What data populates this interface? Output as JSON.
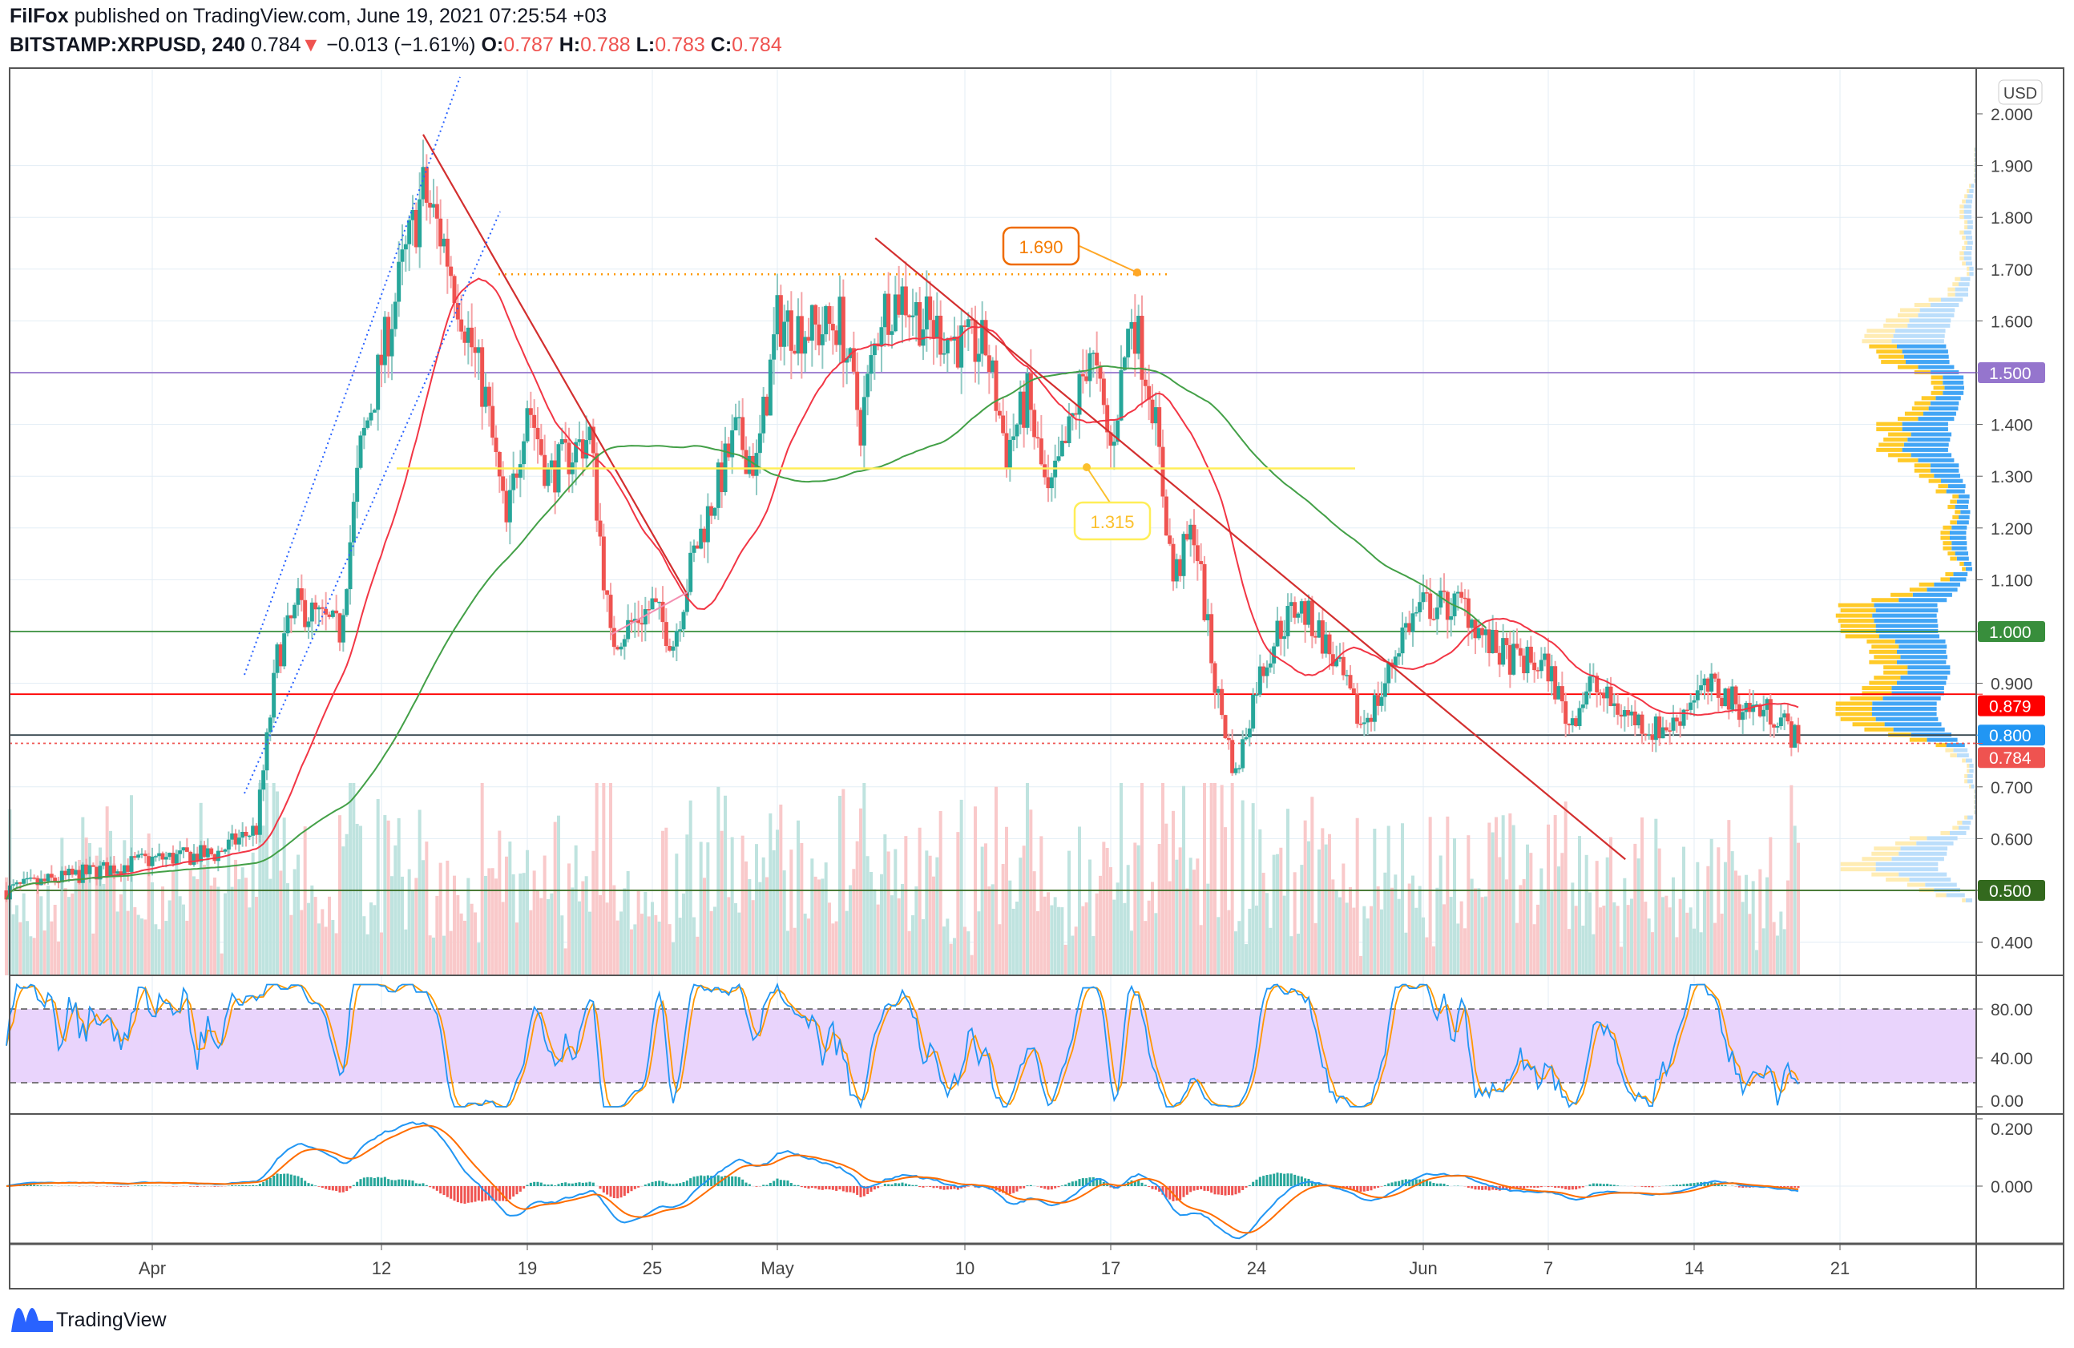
{
  "header": {
    "author": "FilFox",
    "published": "published on TradingView.com, June 19, 2021 07:25:54 +03",
    "symbol": "BITSTAMP:XRPUSD, 240",
    "last": "0.784",
    "arrow": "▼",
    "change": "−0.013 (−1.61%)",
    "o_label": "O:",
    "o": "0.787",
    "h_label": "H:",
    "h": "0.788",
    "l_label": "L:",
    "l": "0.783",
    "c_label": "C:",
    "c": "0.784"
  },
  "footer": {
    "brand": "TradingView"
  },
  "colors": {
    "up": "#26a69a",
    "down": "#ef5350",
    "ma_fast": "#f23645",
    "ma_slow": "#43a047",
    "stoch_k": "#2196f3",
    "stoch_d": "#ff9800"
  },
  "chart_data": {
    "type": "candlestick",
    "symbol": "BITSTAMP:XRPUSD",
    "interval": "240",
    "currency": "USD",
    "price_axis": {
      "ticks": [
        "2.000",
        "1.900",
        "1.800",
        "1.700",
        "1.600",
        "1.400",
        "1.300",
        "1.200",
        "1.100",
        "0.900",
        "0.700",
        "0.600",
        "0.400"
      ],
      "ylim": [
        0.33,
        2.05
      ]
    },
    "time_axis": {
      "labels": [
        "Apr",
        "12",
        "19",
        "25",
        "May",
        "10",
        "17",
        "24",
        "Jun",
        "7",
        "14",
        "21"
      ],
      "days_from_apr1": [
        0,
        11,
        18,
        24,
        30,
        39,
        46,
        53,
        61,
        67,
        74,
        81
      ]
    },
    "price_path_anchors": [
      [
        -7,
        0.5
      ],
      [
        0,
        0.56
      ],
      [
        3,
        0.57
      ],
      [
        5,
        0.62
      ],
      [
        6,
        0.95
      ],
      [
        7,
        1.05
      ],
      [
        9,
        1.0
      ],
      [
        10,
        1.35
      ],
      [
        12,
        1.7
      ],
      [
        13,
        1.85
      ],
      [
        14,
        1.75
      ],
      [
        15,
        1.6
      ],
      [
        16,
        1.45
      ],
      [
        17,
        1.2
      ],
      [
        18,
        1.45
      ],
      [
        19,
        1.3
      ],
      [
        21,
        1.38
      ],
      [
        22,
        0.98
      ],
      [
        24,
        1.05
      ],
      [
        25,
        0.98
      ],
      [
        26,
        1.15
      ],
      [
        28,
        1.38
      ],
      [
        29,
        1.32
      ],
      [
        30,
        1.6
      ],
      [
        32,
        1.58
      ],
      [
        33,
        1.6
      ],
      [
        34,
        1.4
      ],
      [
        35,
        1.62
      ],
      [
        36,
        1.65
      ],
      [
        37,
        1.6
      ],
      [
        39,
        1.55
      ],
      [
        40,
        1.55
      ],
      [
        41,
        1.35
      ],
      [
        42,
        1.45
      ],
      [
        43,
        1.25
      ],
      [
        44,
        1.38
      ],
      [
        45,
        1.55
      ],
      [
        46,
        1.35
      ],
      [
        47,
        1.62
      ],
      [
        48,
        1.45
      ],
      [
        49,
        1.1
      ],
      [
        50,
        1.2
      ],
      [
        51,
        0.9
      ],
      [
        52,
        0.72
      ],
      [
        53,
        0.9
      ],
      [
        54,
        1.0
      ],
      [
        55,
        1.05
      ],
      [
        56,
        1.0
      ],
      [
        57,
        0.92
      ],
      [
        58,
        0.82
      ],
      [
        59,
        0.88
      ],
      [
        60,
        1.0
      ],
      [
        61,
        1.05
      ],
      [
        63,
        1.05
      ],
      [
        64,
        0.98
      ],
      [
        65,
        0.95
      ],
      [
        67,
        0.93
      ],
      [
        68,
        0.82
      ],
      [
        69,
        0.9
      ],
      [
        70,
        0.86
      ],
      [
        72,
        0.81
      ],
      [
        73,
        0.82
      ],
      [
        74,
        0.88
      ],
      [
        75,
        0.89
      ],
      [
        76,
        0.86
      ],
      [
        78,
        0.84
      ],
      [
        79,
        0.784
      ]
    ],
    "horizontal_levels": [
      {
        "price": 1.5,
        "label": "1.500",
        "color": "#9575cd"
      },
      {
        "price": 1.0,
        "label": "1.000",
        "color": "#388e3c"
      },
      {
        "price": 0.879,
        "label": "0.879",
        "color": "#ff0000"
      },
      {
        "price": 0.8,
        "label": "0.800",
        "color": "#2196f3"
      },
      {
        "price": 0.784,
        "label": "0.784",
        "color": "#ef5350"
      },
      {
        "price": 0.5,
        "label": "0.500",
        "color": "#33691e"
      }
    ],
    "callouts": [
      {
        "price": 1.69,
        "label": "1.690",
        "color": "#ef6c00"
      },
      {
        "price": 1.315,
        "label": "1.315",
        "color": "#fbc02d"
      }
    ],
    "trendlines": [
      {
        "from": [
          13,
          1.96
        ],
        "to": [
          25.7,
          1.07
        ],
        "color": "#d32f2f"
      },
      {
        "from": [
          34.7,
          1.76
        ],
        "to": [
          70.7,
          0.56
        ],
        "color": "#d32f2f"
      }
    ],
    "stoch": {
      "ticks": [
        "80.00",
        "40.00",
        "0.00"
      ],
      "upper": 80,
      "lower": 20
    },
    "macd": {
      "ticks": [
        "0.200",
        "0.000"
      ]
    }
  }
}
